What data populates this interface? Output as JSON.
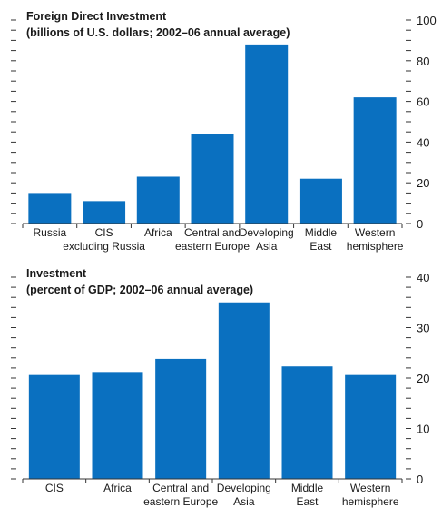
{
  "chart_data": [
    {
      "type": "bar",
      "title": "Foreign Direct Investment",
      "subtitle": "(billions of U.S. dollars; 2002–06 annual average)",
      "categories": [
        [
          "Russia"
        ],
        [
          "CIS",
          "excluding Russia"
        ],
        [
          "Africa"
        ],
        [
          "Central and",
          "eastern Europe"
        ],
        [
          "Developing",
          "Asia"
        ],
        [
          "Middle",
          "East"
        ],
        [
          "Western",
          "hemisphere"
        ]
      ],
      "values": [
        15,
        11,
        23,
        44,
        88,
        22,
        62
      ],
      "ylim": [
        0,
        100
      ],
      "yticks": [
        0,
        20,
        40,
        60,
        80,
        100
      ],
      "tick_labels": [
        "0",
        "20",
        "40",
        "60",
        "80",
        "100"
      ],
      "grid": false,
      "bar_color": "#0a70c0"
    },
    {
      "type": "bar",
      "title": "Investment",
      "subtitle": "(percent of GDP; 2002–06 annual average)",
      "categories": [
        [
          "CIS"
        ],
        [
          "Africa"
        ],
        [
          "Central and",
          "eastern Europe"
        ],
        [
          "Developing",
          "Asia"
        ],
        [
          "Middle",
          "East"
        ],
        [
          "Western",
          "hemisphere"
        ]
      ],
      "values": [
        20.6,
        21.2,
        23.8,
        35,
        22.3,
        20.6
      ],
      "ylim": [
        0,
        40
      ],
      "yticks": [
        0,
        10,
        20,
        30,
        40
      ],
      "tick_labels": [
        "0",
        "10",
        "20",
        "30",
        "40"
      ],
      "grid": false,
      "bar_color": "#0a70c0"
    }
  ]
}
